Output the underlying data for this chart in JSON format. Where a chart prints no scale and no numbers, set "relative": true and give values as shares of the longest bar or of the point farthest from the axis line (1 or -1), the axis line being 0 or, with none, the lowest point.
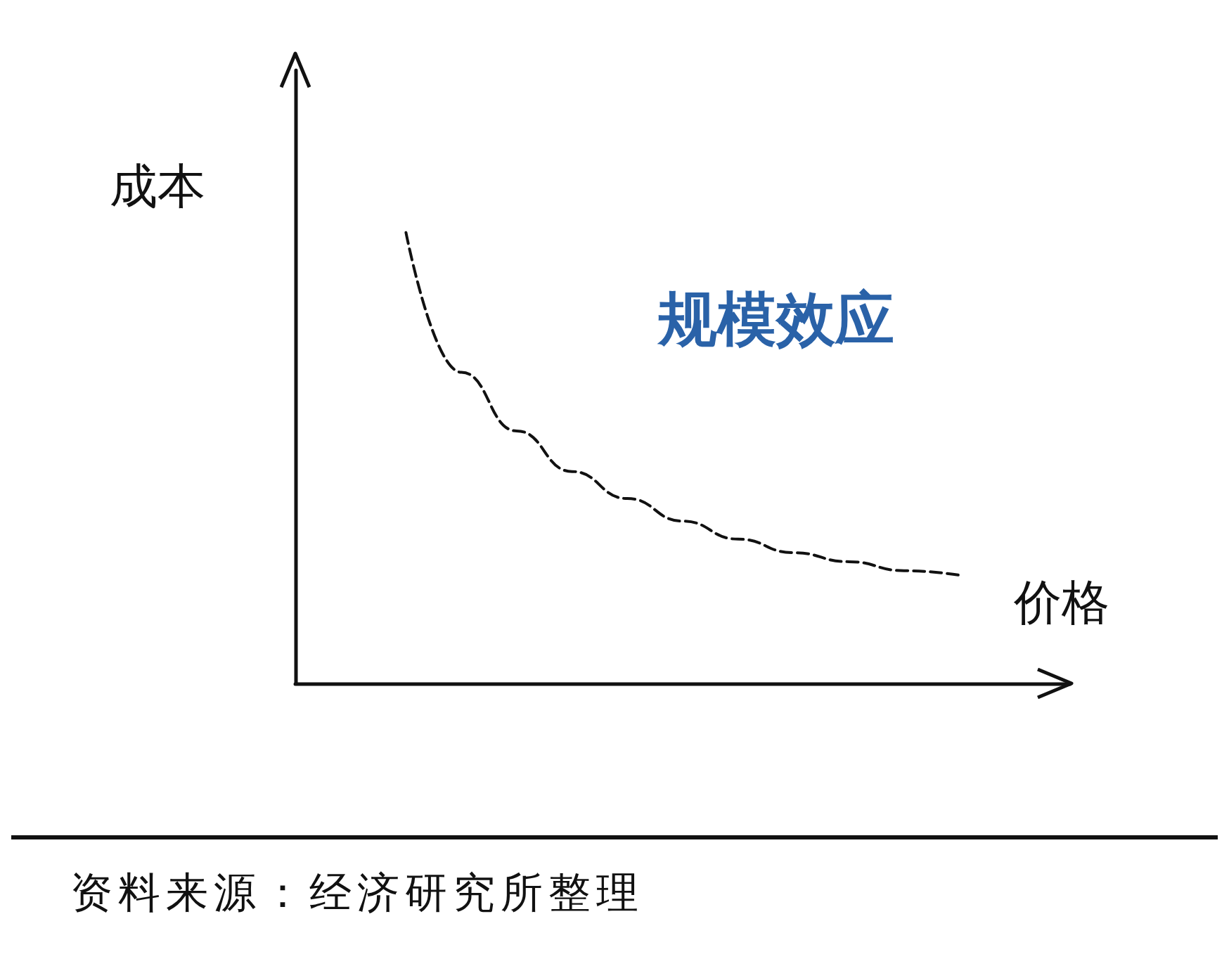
{
  "chart_data": {
    "type": "line",
    "relative": true,
    "xlabel": "价格",
    "ylabel": "成本",
    "categories": [
      null,
      null,
      null,
      null,
      null,
      null,
      null,
      null,
      null,
      null,
      null,
      null,
      null,
      null,
      null
    ],
    "series": [
      {
        "color": "#111111",
        "values": [
          null,
          null,
          1,
          0.69,
          0.56,
          0.47,
          0.41,
          0.36,
          0.32,
          0.29,
          0.27,
          0.25,
          0.24,
          null,
          null
        ]
      }
    ],
    "line_style": "dashed",
    "marker": "none",
    "grid": false,
    "annotations": [
      "规模效应",
      "资料来源：经济研究所整理"
    ]
  }
}
